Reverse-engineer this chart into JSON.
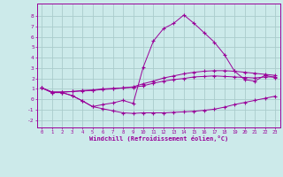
{
  "background_color": "#cceaea",
  "grid_color": "#aacccc",
  "line_color": "#990099",
  "xlabel": "Windchill (Refroidissement éolien,°C)",
  "xlim": [
    -0.5,
    23.5
  ],
  "ylim": [
    -2.7,
    9.2
  ],
  "xticks": [
    0,
    1,
    2,
    3,
    4,
    5,
    6,
    7,
    8,
    9,
    10,
    11,
    12,
    13,
    14,
    15,
    16,
    17,
    18,
    19,
    20,
    21,
    22,
    23
  ],
  "yticks": [
    -2,
    -1,
    0,
    1,
    2,
    3,
    4,
    5,
    6,
    7,
    8
  ],
  "series": [
    {
      "x": [
        0,
        1,
        2,
        3,
        4,
        5,
        6,
        7,
        8,
        9,
        10,
        11,
        12,
        13,
        14,
        15,
        16,
        17,
        18,
        19,
        20,
        21,
        22,
        23
      ],
      "y": [
        1.1,
        0.7,
        0.7,
        0.75,
        0.85,
        0.9,
        1.0,
        1.05,
        1.1,
        1.15,
        1.3,
        1.55,
        1.75,
        1.9,
        2.0,
        2.15,
        2.2,
        2.25,
        2.2,
        2.15,
        2.1,
        2.05,
        2.15,
        2.15
      ]
    },
    {
      "x": [
        0,
        1,
        2,
        3,
        4,
        5,
        6,
        7,
        8,
        9,
        10,
        11,
        12,
        13,
        14,
        15,
        16,
        17,
        18,
        19,
        20,
        21,
        22,
        23
      ],
      "y": [
        1.1,
        0.65,
        0.65,
        0.35,
        -0.15,
        -0.7,
        -0.9,
        -1.1,
        -1.3,
        -1.35,
        -1.3,
        -1.3,
        -1.3,
        -1.25,
        -1.2,
        -1.15,
        -1.05,
        -0.95,
        -0.75,
        -0.5,
        -0.3,
        -0.1,
        0.1,
        0.3
      ]
    },
    {
      "x": [
        0,
        1,
        2,
        3,
        4,
        5,
        6,
        7,
        8,
        9,
        10,
        11,
        12,
        13,
        14,
        15,
        16,
        17,
        18,
        19,
        20,
        21,
        22,
        23
      ],
      "y": [
        1.1,
        0.7,
        0.7,
        0.75,
        0.8,
        0.85,
        0.95,
        1.0,
        1.1,
        1.2,
        1.5,
        1.75,
        2.05,
        2.25,
        2.45,
        2.6,
        2.7,
        2.75,
        2.75,
        2.7,
        2.6,
        2.5,
        2.4,
        2.3
      ]
    },
    {
      "x": [
        0,
        1,
        2,
        3,
        4,
        5,
        6,
        7,
        8,
        9,
        10,
        11,
        12,
        13,
        14,
        15,
        16,
        17,
        18,
        19,
        20,
        21,
        22,
        23
      ],
      "y": [
        1.1,
        0.65,
        0.65,
        0.35,
        -0.15,
        -0.7,
        -0.5,
        -0.35,
        -0.1,
        -0.4,
        3.1,
        5.6,
        6.8,
        7.3,
        8.1,
        7.3,
        6.4,
        5.5,
        4.3,
        2.7,
        1.9,
        1.75,
        2.3,
        2.1
      ]
    }
  ]
}
